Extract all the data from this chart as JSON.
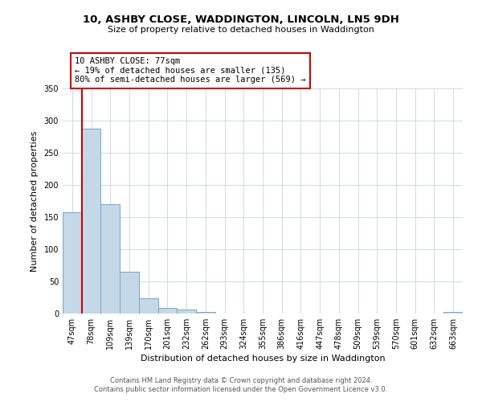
{
  "title": "10, ASHBY CLOSE, WADDINGTON, LINCOLN, LN5 9DH",
  "subtitle": "Size of property relative to detached houses in Waddington",
  "xlabel": "Distribution of detached houses by size in Waddington",
  "ylabel": "Number of detached properties",
  "bin_labels": [
    "47sqm",
    "78sqm",
    "109sqm",
    "139sqm",
    "170sqm",
    "201sqm",
    "232sqm",
    "262sqm",
    "293sqm",
    "324sqm",
    "355sqm",
    "386sqm",
    "416sqm",
    "447sqm",
    "478sqm",
    "509sqm",
    "539sqm",
    "570sqm",
    "601sqm",
    "632sqm",
    "663sqm"
  ],
  "bar_heights": [
    157,
    287,
    170,
    65,
    24,
    9,
    6,
    2,
    0,
    0,
    0,
    0,
    0,
    0,
    0,
    0,
    0,
    0,
    0,
    0,
    2
  ],
  "bar_color": "#c5d8e8",
  "bar_edge_color": "#6fa8c8",
  "vline_color": "#cc0000",
  "annotation_text": "10 ASHBY CLOSE: 77sqm\n← 19% of detached houses are smaller (135)\n80% of semi-detached houses are larger (569) →",
  "annotation_box_color": "#ffffff",
  "annotation_box_edgecolor": "#cc0000",
  "ylim": [
    0,
    350
  ],
  "yticks": [
    0,
    50,
    100,
    150,
    200,
    250,
    300,
    350
  ],
  "footer_line1": "Contains HM Land Registry data © Crown copyright and database right 2024.",
  "footer_line2": "Contains public sector information licensed under the Open Government Licence v3.0.",
  "background_color": "#ffffff",
  "grid_color": "#d0d8e8",
  "title_fontsize": 9.5,
  "subtitle_fontsize": 8,
  "axis_label_fontsize": 8,
  "tick_fontsize": 7,
  "footer_fontsize": 6
}
